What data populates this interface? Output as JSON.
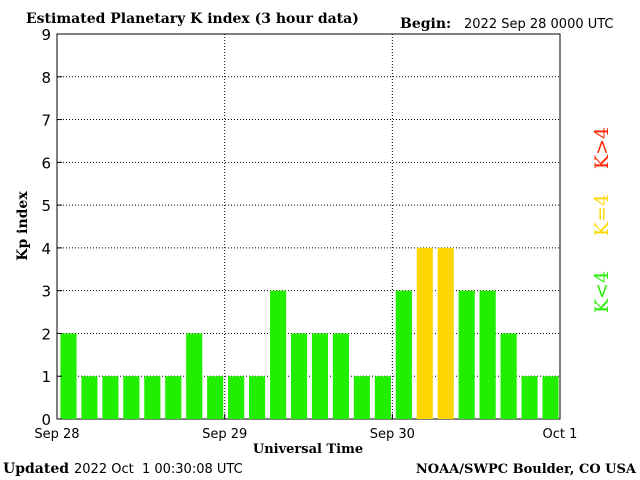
{
  "header": {
    "title": "Estimated Planetary K index (3 hour data)",
    "begin_label": "Begin:",
    "begin_value": "2022 Sep 28 0000 UTC"
  },
  "footer": {
    "updated_label": "Updated",
    "updated_value": "2022 Oct  1 00:30:08 UTC",
    "credit": "NOAA/SWPC Boulder, CO USA"
  },
  "legend": {
    "gt4": "K>4",
    "eq4": "K=4",
    "lt4": "K<4"
  },
  "colors": {
    "lt4": "#22ee00",
    "eq4": "#ffd700",
    "gt4": "#ff2200",
    "axis": "#000000",
    "grid": "#000000"
  },
  "chart_data": {
    "type": "bar",
    "title": "Estimated Planetary K index (3 hour data)",
    "xlabel": "Universal Time",
    "ylabel": "Kp index",
    "ylim": [
      0,
      9
    ],
    "yticks": [
      "0",
      "1",
      "2",
      "3",
      "4",
      "5",
      "6",
      "7",
      "8",
      "9"
    ],
    "xticks": [
      "Sep 28",
      "Sep 29",
      "Sep 30",
      "Oct 1"
    ],
    "grid": true,
    "categories": [
      "Sep 28 00",
      "Sep 28 03",
      "Sep 28 06",
      "Sep 28 09",
      "Sep 28 12",
      "Sep 28 15",
      "Sep 28 18",
      "Sep 28 21",
      "Sep 29 00",
      "Sep 29 03",
      "Sep 29 06",
      "Sep 29 09",
      "Sep 29 12",
      "Sep 29 15",
      "Sep 29 18",
      "Sep 29 21",
      "Sep 30 00",
      "Sep 30 03",
      "Sep 30 06",
      "Sep 30 09",
      "Sep 30 12",
      "Sep 30 15",
      "Sep 30 18",
      "Sep 30 21"
    ],
    "values": [
      2,
      1,
      1,
      1,
      1,
      1,
      2,
      1,
      1,
      1,
      3,
      2,
      2,
      2,
      1,
      1,
      3,
      4,
      4,
      3,
      3,
      2,
      1,
      1
    ]
  }
}
